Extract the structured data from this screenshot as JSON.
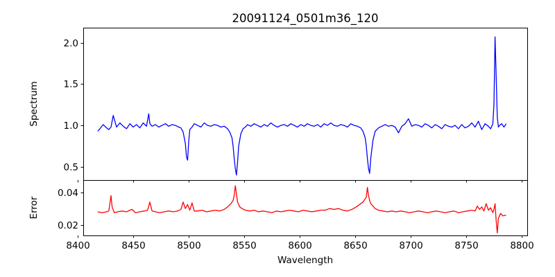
{
  "chart_data": [
    {
      "type": "line",
      "title": "20091124_0501m36_120",
      "xlabel": "",
      "ylabel": "Spectrum",
      "xlim": [
        8405,
        8805
      ],
      "ylim": [
        0.34,
        2.18
      ],
      "xticks": [
        8400,
        8450,
        8500,
        8550,
        8600,
        8650,
        8700,
        8750,
        8800
      ],
      "yticks": [
        0.5,
        1.0,
        1.5,
        2.0
      ],
      "ytick_labels": [
        "0.5",
        "1.0",
        "1.5",
        "2.0"
      ],
      "grid": false,
      "series": [
        {
          "color": "#0000ff",
          "x": [
            8418,
            8420,
            8423,
            8426,
            8428,
            8430,
            8432,
            8435,
            8438,
            8441,
            8444,
            8447,
            8450,
            8453,
            8456,
            8459,
            8462,
            8464,
            8465,
            8467,
            8470,
            8473,
            8476,
            8479,
            8482,
            8485,
            8488,
            8491,
            8493,
            8495,
            8497,
            8498,
            8499,
            8500,
            8501,
            8503,
            8505,
            8508,
            8511,
            8514,
            8517,
            8520,
            8523,
            8526,
            8529,
            8532,
            8535,
            8537,
            8539,
            8540,
            8541,
            8542,
            8543,
            8544,
            8545,
            8547,
            8549,
            8551,
            8553,
            8556,
            8559,
            8562,
            8565,
            8568,
            8571,
            8574,
            8577,
            8580,
            8583,
            8586,
            8589,
            8592,
            8595,
            8598,
            8601,
            8604,
            8607,
            8610,
            8613,
            8616,
            8619,
            8622,
            8625,
            8628,
            8631,
            8634,
            8637,
            8640,
            8643,
            8646,
            8649,
            8652,
            8655,
            8657,
            8659,
            8660,
            8661,
            8662,
            8663,
            8664,
            8666,
            8668,
            8671,
            8674,
            8677,
            8680,
            8683,
            8686,
            8689,
            8692,
            8695,
            8698,
            8701,
            8704,
            8707,
            8710,
            8713,
            8716,
            8719,
            8722,
            8725,
            8728,
            8731,
            8734,
            8737,
            8740,
            8743,
            8746,
            8749,
            8752,
            8755,
            8758,
            8761,
            8764,
            8767,
            8770,
            8772,
            8774,
            8775,
            8776,
            8777,
            8778,
            8779,
            8780,
            8782,
            8784,
            8786
          ],
          "y": [
            0.93,
            0.96,
            1.01,
            0.97,
            0.95,
            0.98,
            1.12,
            0.98,
            1.03,
            0.99,
            0.96,
            1.02,
            0.98,
            1.01,
            0.97,
            1.03,
            0.99,
            1.14,
            1.02,
            0.99,
            1.01,
            0.98,
            1.0,
            1.02,
            0.99,
            1.01,
            1.0,
            0.98,
            0.97,
            0.92,
            0.78,
            0.62,
            0.58,
            0.8,
            0.95,
            0.98,
            1.02,
            1.0,
            0.98,
            1.03,
            1.0,
            0.99,
            1.01,
            1.0,
            0.98,
            0.99,
            0.96,
            0.92,
            0.85,
            0.75,
            0.6,
            0.48,
            0.4,
            0.55,
            0.75,
            0.9,
            0.96,
            0.98,
            1.01,
            0.99,
            1.02,
            1.0,
            0.98,
            1.01,
            0.99,
            1.03,
            1.0,
            0.98,
            1.0,
            1.01,
            0.99,
            1.02,
            1.0,
            0.98,
            1.01,
            0.99,
            1.02,
            1.0,
            0.99,
            1.01,
            0.98,
            1.02,
            1.0,
            1.03,
            1.0,
            0.99,
            1.01,
            1.0,
            0.98,
            1.02,
            1.0,
            0.99,
            0.97,
            0.93,
            0.85,
            0.75,
            0.6,
            0.48,
            0.42,
            0.6,
            0.82,
            0.93,
            0.97,
            0.99,
            1.01,
            0.99,
            1.0,
            0.98,
            0.91,
            0.99,
            1.02,
            1.08,
            0.99,
            1.01,
            1.0,
            0.98,
            1.02,
            1.0,
            0.97,
            1.01,
            0.99,
            0.96,
            1.01,
            0.99,
            0.98,
            1.0,
            0.96,
            1.01,
            0.97,
            0.99,
            1.03,
            0.98,
            1.05,
            0.95,
            1.02,
            0.99,
            0.96,
            1.02,
            1.25,
            2.07,
            1.6,
            1.1,
            0.98,
            1.0,
            1.02,
            0.98,
            1.02
          ]
        }
      ]
    },
    {
      "type": "line",
      "title": "",
      "xlabel": "Wavelength",
      "ylabel": "Error",
      "xlim": [
        8405,
        8805
      ],
      "ylim": [
        0.0135,
        0.0475
      ],
      "xticks": [
        8400,
        8450,
        8500,
        8550,
        8600,
        8650,
        8700,
        8750,
        8800
      ],
      "xtick_labels": [
        "8400",
        "8450",
        "8500",
        "8550",
        "8600",
        "8650",
        "8700",
        "8750",
        "8800"
      ],
      "yticks": [
        0.02,
        0.04
      ],
      "ytick_labels": [
        "0.02",
        "0.04"
      ],
      "grid": false,
      "series": [
        {
          "color": "#ff0000",
          "x": [
            8418,
            8422,
            8426,
            8428,
            8429,
            8430,
            8431,
            8433,
            8436,
            8440,
            8444,
            8447,
            8449,
            8452,
            8456,
            8460,
            8463,
            8465,
            8467,
            8470,
            8474,
            8478,
            8482,
            8486,
            8490,
            8493,
            8495,
            8497,
            8499,
            8501,
            8503,
            8505,
            8508,
            8512,
            8516,
            8520,
            8524,
            8528,
            8532,
            8535,
            8538,
            8540,
            8541,
            8542,
            8543,
            8544,
            8546,
            8548,
            8551,
            8555,
            8559,
            8563,
            8567,
            8571,
            8575,
            8579,
            8583,
            8587,
            8591,
            8595,
            8599,
            8603,
            8607,
            8611,
            8615,
            8619,
            8623,
            8627,
            8631,
            8635,
            8639,
            8643,
            8647,
            8651,
            8654,
            8657,
            8659,
            8660,
            8661,
            8662,
            8663,
            8664,
            8666,
            8668,
            8671,
            8675,
            8679,
            8683,
            8687,
            8691,
            8695,
            8699,
            8703,
            8707,
            8711,
            8715,
            8719,
            8723,
            8727,
            8731,
            8735,
            8739,
            8743,
            8747,
            8751,
            8755,
            8758,
            8760,
            8762,
            8764,
            8766,
            8768,
            8770,
            8772,
            8774,
            8775,
            8776,
            8777,
            8778,
            8779,
            8781,
            8783,
            8786
          ],
          "y": [
            0.028,
            0.0275,
            0.028,
            0.0285,
            0.033,
            0.038,
            0.031,
            0.0275,
            0.028,
            0.0285,
            0.028,
            0.029,
            0.0295,
            0.0275,
            0.028,
            0.0285,
            0.029,
            0.034,
            0.0285,
            0.028,
            0.0275,
            0.028,
            0.0285,
            0.028,
            0.0285,
            0.0295,
            0.034,
            0.03,
            0.0325,
            0.029,
            0.0335,
            0.0285,
            0.0285,
            0.029,
            0.028,
            0.0285,
            0.029,
            0.0285,
            0.0295,
            0.031,
            0.033,
            0.035,
            0.038,
            0.044,
            0.039,
            0.034,
            0.031,
            0.03,
            0.029,
            0.0285,
            0.029,
            0.028,
            0.0285,
            0.028,
            0.0275,
            0.0285,
            0.028,
            0.0285,
            0.029,
            0.0285,
            0.028,
            0.029,
            0.0285,
            0.028,
            0.0285,
            0.029,
            0.029,
            0.03,
            0.0295,
            0.03,
            0.029,
            0.0285,
            0.0295,
            0.031,
            0.0325,
            0.034,
            0.036,
            0.037,
            0.043,
            0.038,
            0.035,
            0.033,
            0.0315,
            0.03,
            0.029,
            0.0285,
            0.028,
            0.0285,
            0.028,
            0.0285,
            0.028,
            0.0275,
            0.028,
            0.0285,
            0.028,
            0.0275,
            0.028,
            0.0285,
            0.028,
            0.0275,
            0.028,
            0.0285,
            0.0275,
            0.028,
            0.0285,
            0.029,
            0.0285,
            0.0315,
            0.0295,
            0.031,
            0.0285,
            0.033,
            0.029,
            0.0305,
            0.0275,
            0.0295,
            0.033,
            0.0225,
            0.015,
            0.024,
            0.027,
            0.0255,
            0.026
          ]
        }
      ]
    }
  ]
}
